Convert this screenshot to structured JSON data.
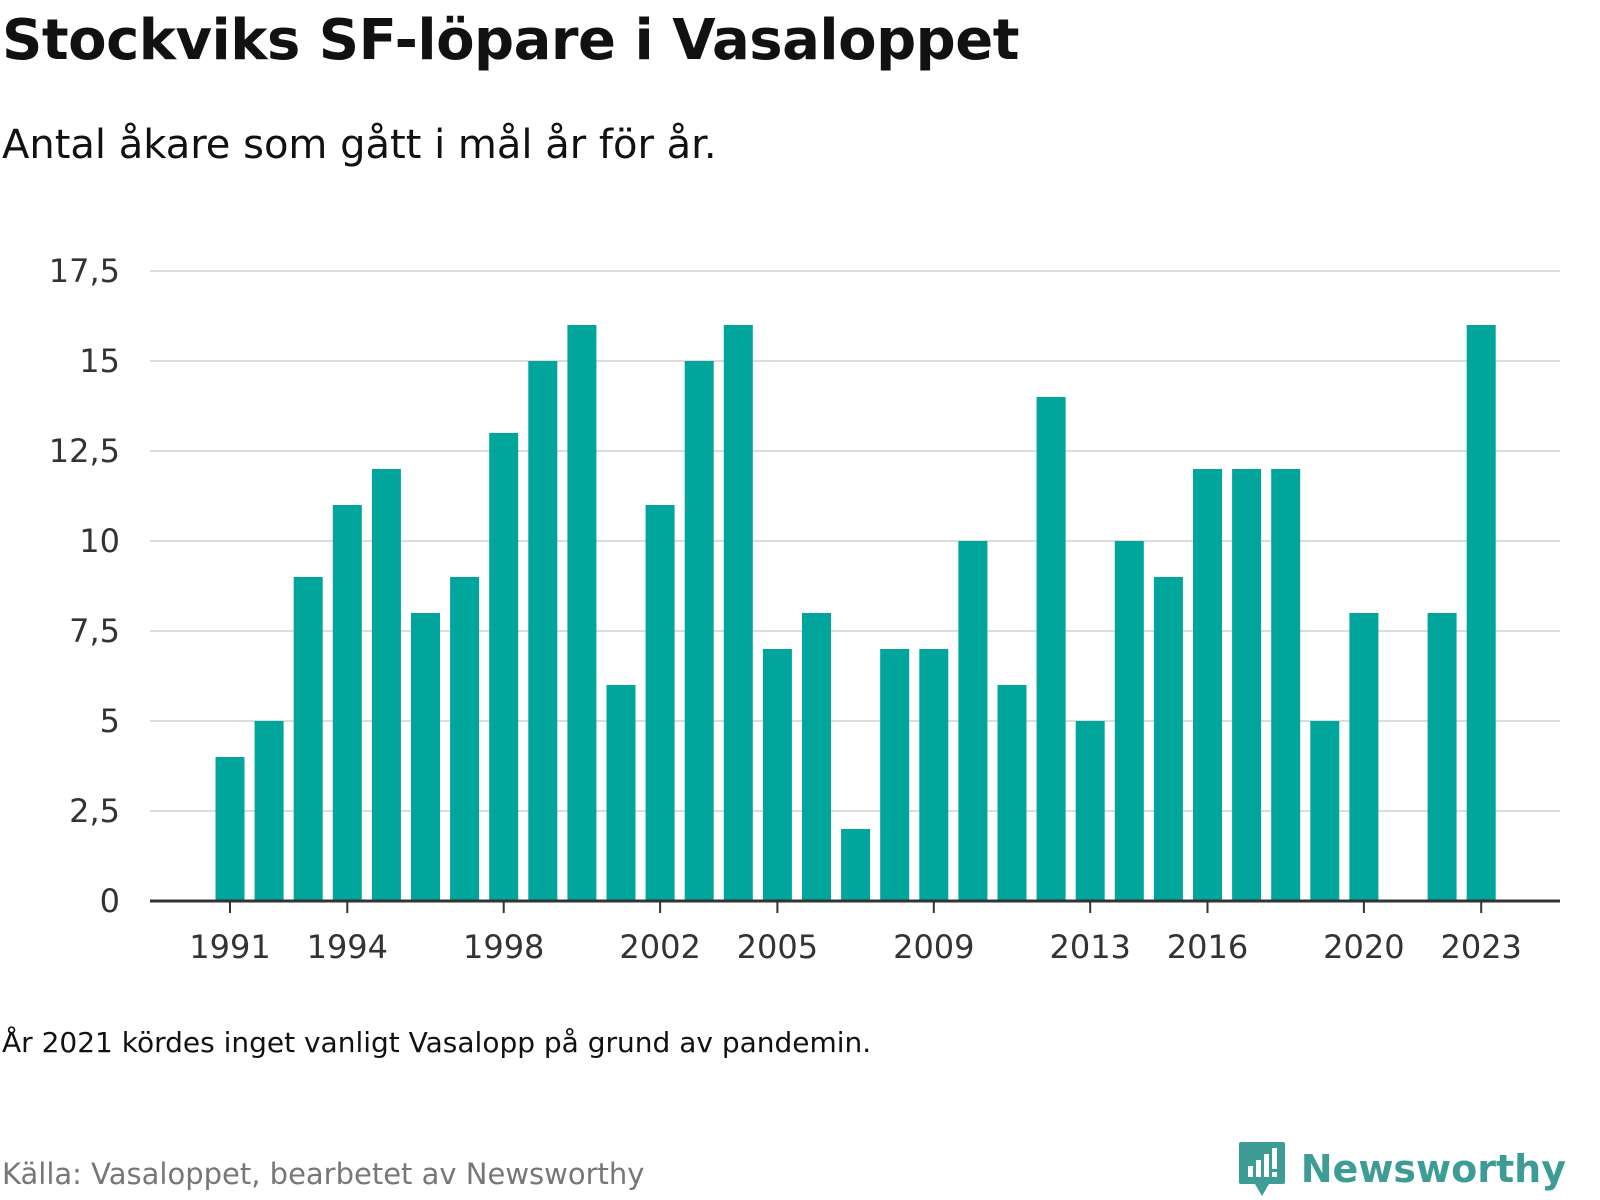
{
  "title": "Stockviks SF-löpare i Vasaloppet",
  "subtitle": "Antal åkare som gått i mål år för år.",
  "note": "År 2021 kördes inget vanligt Vasalopp på grund av pandemin.",
  "source": "Källa: Vasaloppet, bearbetet av Newsworthy",
  "brand": {
    "name": "Newsworthy",
    "icon": "newsworthy-logo-icon"
  },
  "colors": {
    "bar": "#00a59b",
    "grid": "#dddddd",
    "axis": "#333333",
    "brand": "#3d9c95",
    "source": "#777777"
  },
  "chart_data": {
    "type": "bar",
    "title": "Stockviks SF-löpare i Vasaloppet",
    "subtitle": "Antal åkare som gått i mål år för år.",
    "xlabel": "",
    "ylabel": "",
    "categories": [
      1991,
      1992,
      1993,
      1994,
      1995,
      1996,
      1997,
      1998,
      1999,
      2000,
      2001,
      2002,
      2003,
      2004,
      2005,
      2006,
      2007,
      2008,
      2009,
      2010,
      2011,
      2012,
      2013,
      2014,
      2015,
      2016,
      2017,
      2018,
      2019,
      2020,
      2021,
      2022,
      2023
    ],
    "values": [
      4,
      5,
      9,
      11,
      12,
      8,
      9,
      13,
      15,
      16,
      6,
      11,
      15,
      16,
      7,
      8,
      2,
      7,
      7,
      10,
      6,
      14,
      5,
      10,
      9,
      12,
      12,
      12,
      5,
      8,
      null,
      8,
      16
    ],
    "ylim": [
      0,
      17.5
    ],
    "yticks": [
      0,
      2.5,
      5,
      7.5,
      10,
      12.5,
      15,
      17.5
    ],
    "ytick_labels": [
      "0",
      "2,5",
      "5",
      "7,5",
      "10",
      "12,5",
      "15",
      "17,5"
    ],
    "xticks": [
      1991,
      1994,
      1998,
      2002,
      2005,
      2009,
      2013,
      2016,
      2020,
      2023
    ],
    "xtick_labels": [
      "1991",
      "1994",
      "1998",
      "2002",
      "2005",
      "2009",
      "2013",
      "2016",
      "2020",
      "2023"
    ],
    "grid": true,
    "legend": false
  }
}
